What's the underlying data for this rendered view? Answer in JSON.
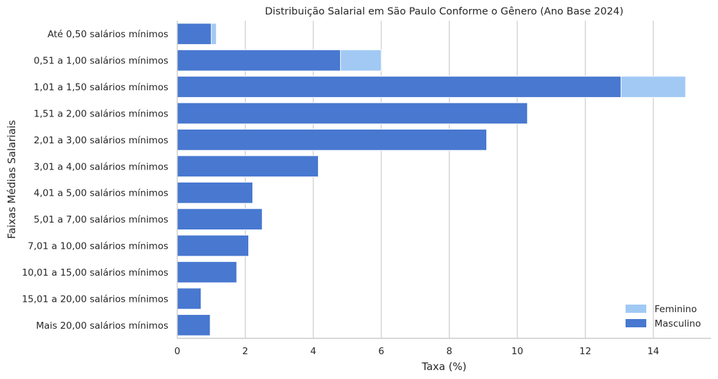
{
  "chart_data": {
    "type": "bar",
    "orientation": "horizontal",
    "title": "Distribuição Salarial em São Paulo Conforme o Gênero (Ano Base 2024)",
    "xlabel": "Taxa (%)",
    "ylabel": "Faixas Médias Salariais",
    "xlim": [
      0,
      15.7
    ],
    "xticks": [
      "0",
      "2",
      "4",
      "6",
      "8",
      "10",
      "12",
      "14"
    ],
    "grid": "vertical",
    "legend_position": "bottom-right",
    "categories": [
      "Até 0,50 salários mínimos",
      "0,51 a 1,00 salários mínimos",
      "1,01 a 1,50 salários mínimos",
      "1,51 a 2,00 salários mínimos",
      "2,01 a 3,00 salários mínimos",
      "3,01 a 4,00 salários mínimos",
      "4,01 a 5,00 salários mínimos",
      "5,01 a 7,00 salários mínimos",
      "7,01 a 10,00 salários mínimos",
      "10,01 a 15,00 salários mínimos",
      "15,01 a 20,00 salários mínimos",
      "Mais 20,00 salários mínimos"
    ],
    "series": [
      {
        "name": "Feminino",
        "color": "#a1c9f4",
        "values": [
          1.15,
          6.0,
          14.95,
          0,
          0,
          0,
          0,
          0,
          0,
          0,
          0,
          0
        ]
      },
      {
        "name": "Masculino",
        "color": "#4878d0",
        "values": [
          1.0,
          4.8,
          13.05,
          10.3,
          9.1,
          4.15,
          2.22,
          2.5,
          2.1,
          1.75,
          0.7,
          0.97
        ]
      }
    ]
  }
}
